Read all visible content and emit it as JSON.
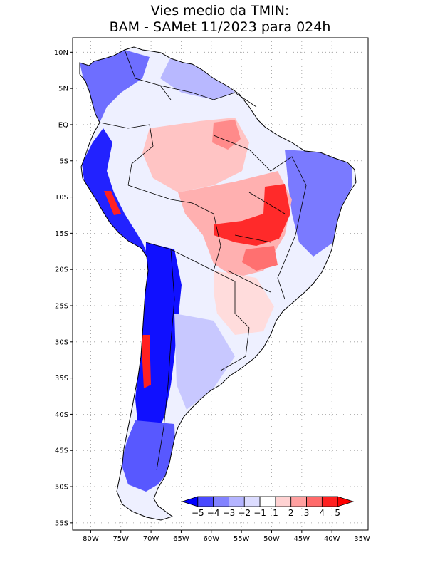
{
  "title": {
    "line1": "Vies medio da TMIN:",
    "line2": "BAM - SAMet 11/2023  para 024h"
  },
  "map": {
    "lon_range": [
      -83,
      -34
    ],
    "lat_range": [
      -56,
      12
    ],
    "lat_ticks": [
      {
        "value": 10,
        "label": "10N"
      },
      {
        "value": 5,
        "label": "5N"
      },
      {
        "value": 0,
        "label": "EQ"
      },
      {
        "value": -5,
        "label": "5S"
      },
      {
        "value": -10,
        "label": "10S"
      },
      {
        "value": -15,
        "label": "15S"
      },
      {
        "value": -20,
        "label": "20S"
      },
      {
        "value": -25,
        "label": "25S"
      },
      {
        "value": -30,
        "label": "30S"
      },
      {
        "value": -35,
        "label": "35S"
      },
      {
        "value": -40,
        "label": "40S"
      },
      {
        "value": -45,
        "label": "45S"
      },
      {
        "value": -50,
        "label": "50S"
      },
      {
        "value": -55,
        "label": "55S"
      }
    ],
    "lon_ticks": [
      {
        "value": -80,
        "label": "80W"
      },
      {
        "value": -75,
        "label": "75W"
      },
      {
        "value": -70,
        "label": "70W"
      },
      {
        "value": -65,
        "label": "65W"
      },
      {
        "value": -60,
        "label": "60W"
      },
      {
        "value": -55,
        "label": "55W"
      },
      {
        "value": -50,
        "label": "50W"
      },
      {
        "value": -45,
        "label": "45W"
      },
      {
        "value": -40,
        "label": "40W"
      },
      {
        "value": -35,
        "label": "35W"
      }
    ],
    "grid": "dotted"
  },
  "colorbar": {
    "levels": [
      "-5",
      "-4",
      "-3",
      "-2",
      "-1",
      "1",
      "2",
      "3",
      "4",
      "5"
    ],
    "colors": [
      "#0000ff",
      "#4a4aff",
      "#8282ff",
      "#b4b4ff",
      "#dcdcff",
      "#ffffff",
      "#ffd2d2",
      "#ffa0a0",
      "#ff6a6a",
      "#ff2020",
      "#ff0000"
    ],
    "placement": "bottom-right inside map"
  },
  "colors": {
    "coast": "#000000",
    "border": "#000000",
    "grid": "#9a9a9a"
  }
}
